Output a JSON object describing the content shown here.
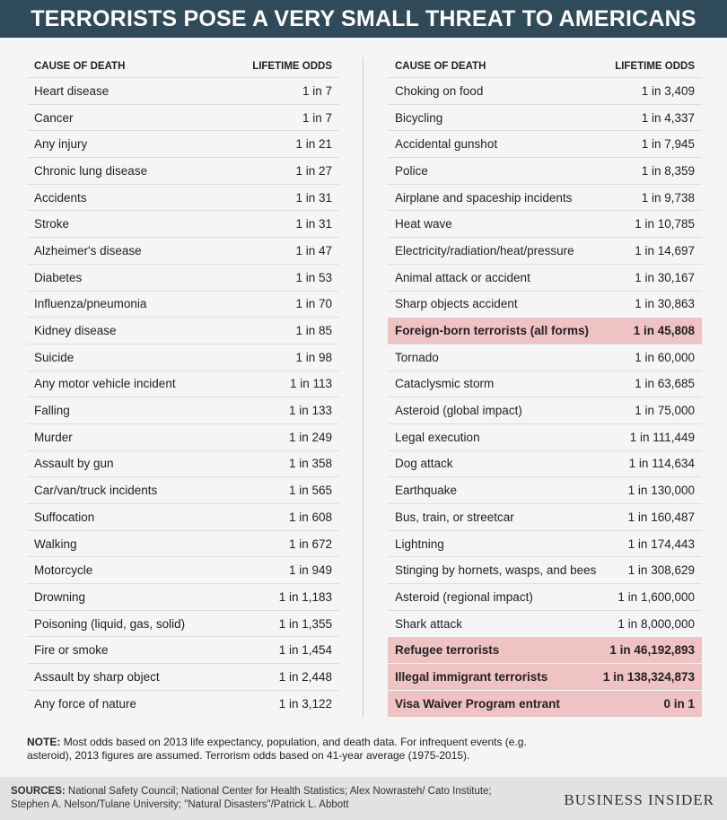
{
  "header": {
    "title": "TERRORISTS POSE A VERY SMALL THREAT TO AMERICANS"
  },
  "tables": [
    {
      "columns": [
        "CAUSE OF DEATH",
        "LIFETIME ODDS"
      ],
      "rows": [
        [
          "Heart disease",
          "1 in 7"
        ],
        [
          "Cancer",
          "1 in 7"
        ],
        [
          "Any injury",
          "1 in 21"
        ],
        [
          "Chronic lung disease",
          "1 in 27"
        ],
        [
          "Accidents",
          "1 in 31"
        ],
        [
          "Stroke",
          "1 in 31"
        ],
        [
          "Alzheimer's disease",
          "1 in 47"
        ],
        [
          "Diabetes",
          "1 in 53"
        ],
        [
          "Influenza/pneumonia",
          "1 in 70"
        ],
        [
          "Kidney disease",
          "1 in 85"
        ],
        [
          "Suicide",
          "1 in 98"
        ],
        [
          "Any motor vehicle incident",
          "1 in 113"
        ],
        [
          "Falling",
          "1 in 133"
        ],
        [
          "Murder",
          "1 in 249"
        ],
        [
          "Assault by gun",
          "1 in 358"
        ],
        [
          "Car/van/truck incidents",
          "1 in 565"
        ],
        [
          "Suffocation",
          "1 in 608"
        ],
        [
          "Walking",
          "1 in 672"
        ],
        [
          "Motorcycle",
          "1 in 949"
        ],
        [
          "Drowning",
          "1 in 1,183"
        ],
        [
          "Poisoning (liquid, gas, solid)",
          "1 in 1,355"
        ],
        [
          "Fire or smoke",
          "1 in 1,454"
        ],
        [
          "Assault by sharp object",
          "1 in 2,448"
        ],
        [
          "Any force of nature",
          "1 in 3,122"
        ]
      ],
      "highlighted_rows": []
    },
    {
      "columns": [
        "CAUSE OF DEATH",
        "LIFETIME ODDS"
      ],
      "rows": [
        [
          "Choking on food",
          "1 in 3,409"
        ],
        [
          "Bicycling",
          "1 in 4,337"
        ],
        [
          "Accidental gunshot",
          "1 in 7,945"
        ],
        [
          "Police",
          "1 in 8,359"
        ],
        [
          "Airplane and spaceship incidents",
          "1 in 9,738"
        ],
        [
          "Heat wave",
          "1 in 10,785"
        ],
        [
          "Electricity/radiation/heat/pressure",
          "1 in 14,697"
        ],
        [
          "Animal attack or accident",
          "1 in 30,167"
        ],
        [
          "Sharp objects accident",
          "1 in 30,863"
        ],
        [
          "Foreign-born terrorists (all forms)",
          "1 in 45,808"
        ],
        [
          "Tornado",
          "1 in 60,000"
        ],
        [
          "Cataclysmic storm",
          "1 in 63,685"
        ],
        [
          "Asteroid (global impact)",
          "1 in 75,000"
        ],
        [
          "Legal execution",
          "1 in 111,449"
        ],
        [
          "Dog attack",
          "1 in 114,634"
        ],
        [
          "Earthquake",
          "1 in 130,000"
        ],
        [
          "Bus, train, or streetcar",
          "1 in 160,487"
        ],
        [
          "Lightning",
          "1 in 174,443"
        ],
        [
          "Stinging by hornets, wasps, and bees",
          "1 in 308,629"
        ],
        [
          "Asteroid (regional impact)",
          "1 in 1,600,000"
        ],
        [
          "Shark attack",
          "1 in 8,000,000"
        ],
        [
          "Refugee terrorists",
          "1 in 46,192,893"
        ],
        [
          "Illegal immigrant terrorists",
          "1 in 138,324,873"
        ],
        [
          "Visa Waiver Program entrant",
          "0 in 1"
        ]
      ],
      "highlighted_rows": [
        9,
        21,
        22,
        23
      ]
    }
  ],
  "note": {
    "label": "NOTE:",
    "text": "Most odds based on 2013 life expectancy, population, and death data. For infrequent events (e.g. asteroid), 2013 figures are assumed. Terrorism odds based on 41-year average (1975-2015)."
  },
  "sources": {
    "label": "SOURCES:",
    "text": "National Safety Council; National Center for Health Statistics; Alex Nowrasteh/ Cato Institute; Stephen A. Nelson/Tulane University; \"Natural Disasters\"/Patrick L. Abbott"
  },
  "logo": "BUSINESS INSIDER"
}
